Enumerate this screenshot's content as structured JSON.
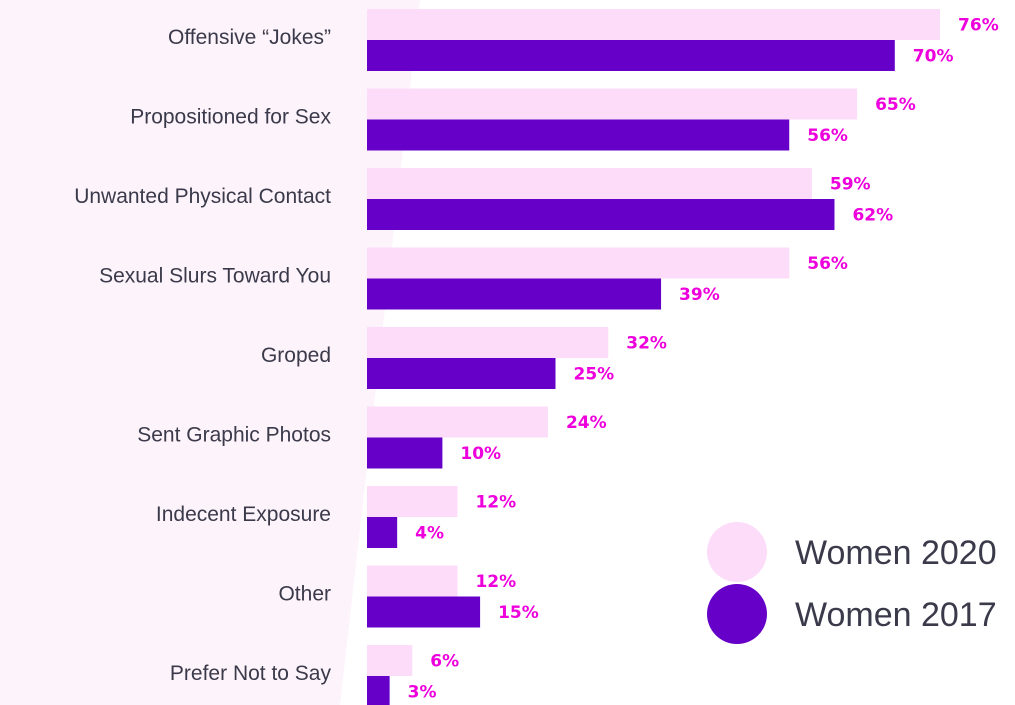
{
  "chart_data": {
    "type": "bar",
    "orientation": "horizontal",
    "categories": [
      "Offensive “Jokes”",
      "Propositioned for Sex",
      "Unwanted Physical Contact",
      "Sexual Slurs Toward You",
      "Groped",
      "Sent Graphic Photos",
      "Indecent Exposure",
      "Other",
      "Prefer Not to Say"
    ],
    "series": [
      {
        "name": "Women 2020",
        "color": "#fcdcf8",
        "values": [
          76,
          65,
          59,
          56,
          32,
          24,
          12,
          12,
          6
        ],
        "labels": [
          "76%",
          "65%",
          "59%",
          "56%",
          "32%",
          "24%",
          "12%",
          "12%",
          "6%"
        ]
      },
      {
        "name": "Women 2017",
        "color": "#6600c8",
        "values": [
          70,
          56,
          62,
          39,
          25,
          10,
          4,
          15,
          3
        ],
        "labels": [
          "70%",
          "56%",
          "62%",
          "39%",
          "25%",
          "10%",
          "4%",
          "15%",
          "3%"
        ]
      }
    ],
    "value_label_color": "#ee00dd",
    "xlim": [
      0,
      100
    ],
    "grid": false,
    "legend_position": "bottom-right"
  }
}
